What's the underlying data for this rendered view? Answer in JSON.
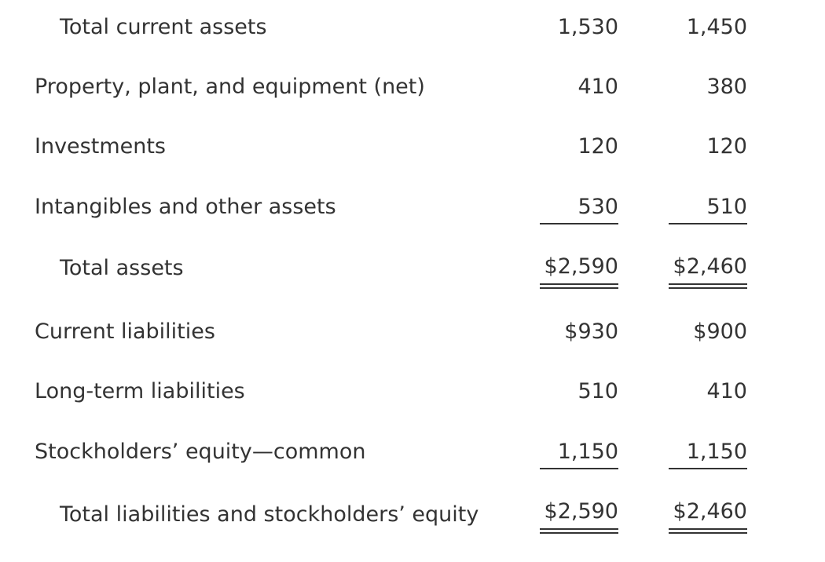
{
  "rows": [
    {
      "label": "Total current assets",
      "col1": "1,530",
      "col2": "1,450"
    },
    {
      "label": "Property, plant, and equipment (net)",
      "col1": "410",
      "col2": "380"
    },
    {
      "label": "Investments",
      "col1": "120",
      "col2": "120"
    },
    {
      "label": "Intangibles and other assets",
      "col1": "530",
      "col2": "510"
    },
    {
      "label": "Total assets",
      "col1": "$2,590",
      "col2": "$2,460"
    },
    {
      "label": "Current liabilities",
      "col1": "$930",
      "col2": "$900"
    },
    {
      "label": "Long-term liabilities",
      "col1": "510",
      "col2": "410"
    },
    {
      "label": "Stockholders’ equity—common",
      "col1": "1,150",
      "col2": "1,150"
    },
    {
      "label": "Total liabilities and stockholders’ equity",
      "col1": "$2,590",
      "col2": "$2,460"
    }
  ]
}
